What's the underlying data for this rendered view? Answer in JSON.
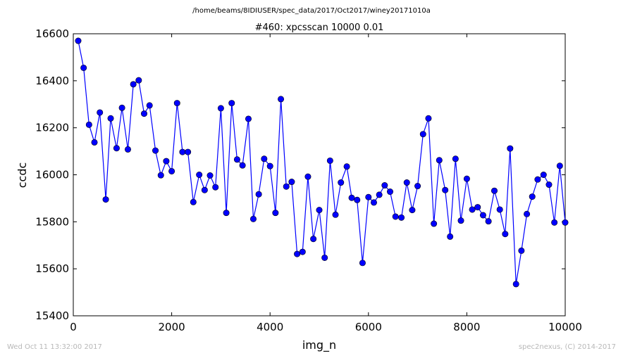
{
  "footer": {
    "timestamp": "Wed Oct 11 13:32:00 2017",
    "credit": "spec2nexus, (C) 2014-2017"
  },
  "chart_data": {
    "type": "line",
    "suptitle": "/home/beams/8IDIUSER/spec_data/2017/Oct2017/winey20171010a",
    "title": "#460: xpcsscan 10000 0.01",
    "xlabel": "img_n",
    "ylabel": "ccdc",
    "xlim": [
      0,
      10000
    ],
    "ylim": [
      15400,
      16600
    ],
    "xticks": [
      0,
      2000,
      4000,
      6000,
      8000,
      10000
    ],
    "yticks": [
      15400,
      15600,
      15800,
      16000,
      16200,
      16400,
      16600
    ],
    "grid": false,
    "line_color": "#0000ff",
    "marker": "circle",
    "series": [
      {
        "x": [
          100,
          210,
          320,
          430,
          540,
          660,
          760,
          880,
          990,
          1110,
          1220,
          1330,
          1440,
          1550,
          1670,
          1780,
          1890,
          2000,
          2110,
          2220,
          2330,
          2440,
          2560,
          2670,
          2780,
          2890,
          3000,
          3110,
          3220,
          3330,
          3440,
          3560,
          3660,
          3770,
          3880,
          4000,
          4110,
          4220,
          4330,
          4440,
          4550,
          4660,
          4770,
          4880,
          5000,
          5110,
          5220,
          5330,
          5440,
          5560,
          5660,
          5770,
          5880,
          6000,
          6110,
          6220,
          6330,
          6440,
          6550,
          6670,
          6780,
          6890,
          7000,
          7110,
          7220,
          7330,
          7440,
          7560,
          7660,
          7770,
          7880,
          8000,
          8110,
          8220,
          8330,
          8440,
          8560,
          8670,
          8780,
          8880,
          9000,
          9110,
          9220,
          9330,
          9440,
          9560,
          9670,
          9780,
          9890,
          10000
        ],
        "y": [
          16570,
          16455,
          16213,
          16138,
          16265,
          15895,
          16240,
          16113,
          16285,
          16108,
          16385,
          16402,
          16260,
          16295,
          16103,
          15998,
          16058,
          16015,
          16305,
          16097,
          16097,
          15884,
          16000,
          15935,
          15997,
          15947,
          16283,
          15838,
          16305,
          16065,
          16040,
          16238,
          15812,
          15917,
          16068,
          16037,
          15838,
          16322,
          15950,
          15970,
          15663,
          15672,
          15992,
          15727,
          15850,
          15647,
          16060,
          15830,
          15967,
          16035,
          15902,
          15893,
          15625,
          15905,
          15882,
          15915,
          15955,
          15928,
          15822,
          15818,
          15967,
          15850,
          15952,
          16173,
          16240,
          15792,
          16062,
          15935,
          15737,
          16068,
          15805,
          15983,
          15852,
          15862,
          15828,
          15802,
          15932,
          15852,
          15748,
          16112,
          15535,
          15677,
          15833,
          15907,
          15980,
          16000,
          15958,
          15797,
          16038,
          15797
        ]
      }
    ]
  }
}
